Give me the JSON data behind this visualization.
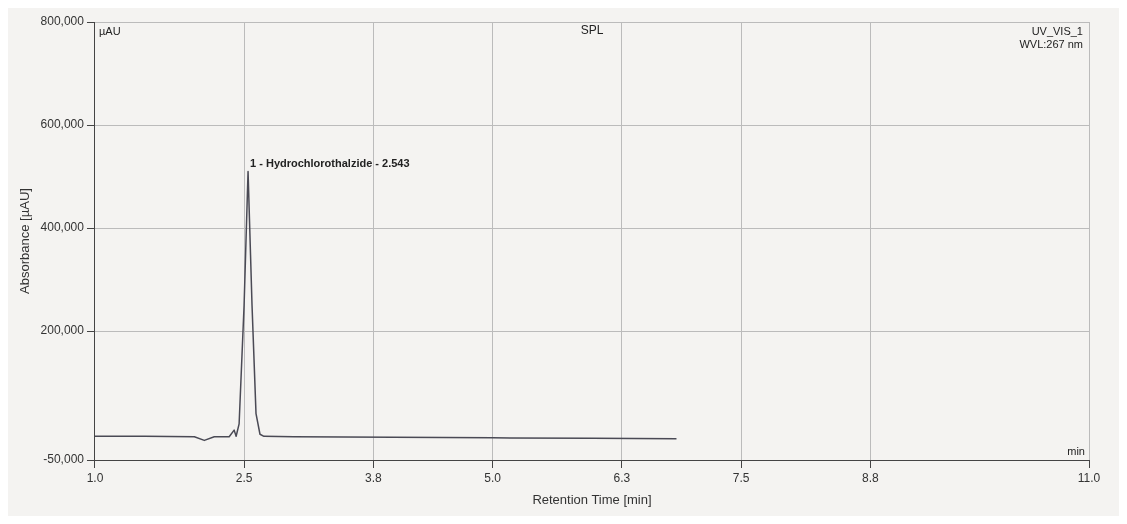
{
  "chart_data": {
    "type": "line",
    "title": "SPL",
    "xlabel": "Retention Time [min]",
    "ylabel": "Absorbance [µAU]",
    "x": [
      1.0,
      1.5,
      2.0,
      2.1,
      2.2,
      2.35,
      2.4,
      2.42,
      2.45,
      2.5,
      2.54,
      2.58,
      2.62,
      2.66,
      2.7,
      3.0,
      4.0,
      5.0,
      6.0,
      6.85
    ],
    "series": [
      {
        "color": "#4a4a55",
        "values": [
          -4000,
          -4000,
          -5000,
          -12000,
          -5000,
          -5000,
          8000,
          -4000,
          20000,
          250000,
          510000,
          250000,
          40000,
          0,
          -4000,
          -5000,
          -6000,
          -7000,
          -8000,
          -9000
        ]
      }
    ],
    "xlim": [
      1.0,
      11.0
    ],
    "xticks": [
      {
        "value": 1.0,
        "label": "1.0"
      },
      {
        "value": 2.5,
        "label": "2.5"
      },
      {
        "value": 3.8,
        "label": "3.8"
      },
      {
        "value": 5.0,
        "label": "5.0"
      },
      {
        "value": 6.3,
        "label": "6.3"
      },
      {
        "value": 7.5,
        "label": "7.5"
      },
      {
        "value": 8.8,
        "label": "8.8"
      },
      {
        "value": 11.0,
        "label": "11.0"
      }
    ],
    "ylim": [
      -50000,
      800000
    ],
    "yticks": [
      {
        "value": -50000,
        "label": "-50,000"
      },
      {
        "value": 200000,
        "label": "200,000"
      },
      {
        "value": 400000,
        "label": "400,000"
      },
      {
        "value": 600000,
        "label": "600,000"
      },
      {
        "value": 800000,
        "label": "800,000"
      }
    ],
    "grid": true,
    "legend": false,
    "marker": "none",
    "line_style": "solid",
    "annotations": [
      {
        "text": "1 - Hydrochlorothalzide - 2.543",
        "x": 2.54,
        "y": 510000
      },
      "UV_VIS_1",
      "WVL:267 nm",
      "µAU",
      "min"
    ]
  }
}
